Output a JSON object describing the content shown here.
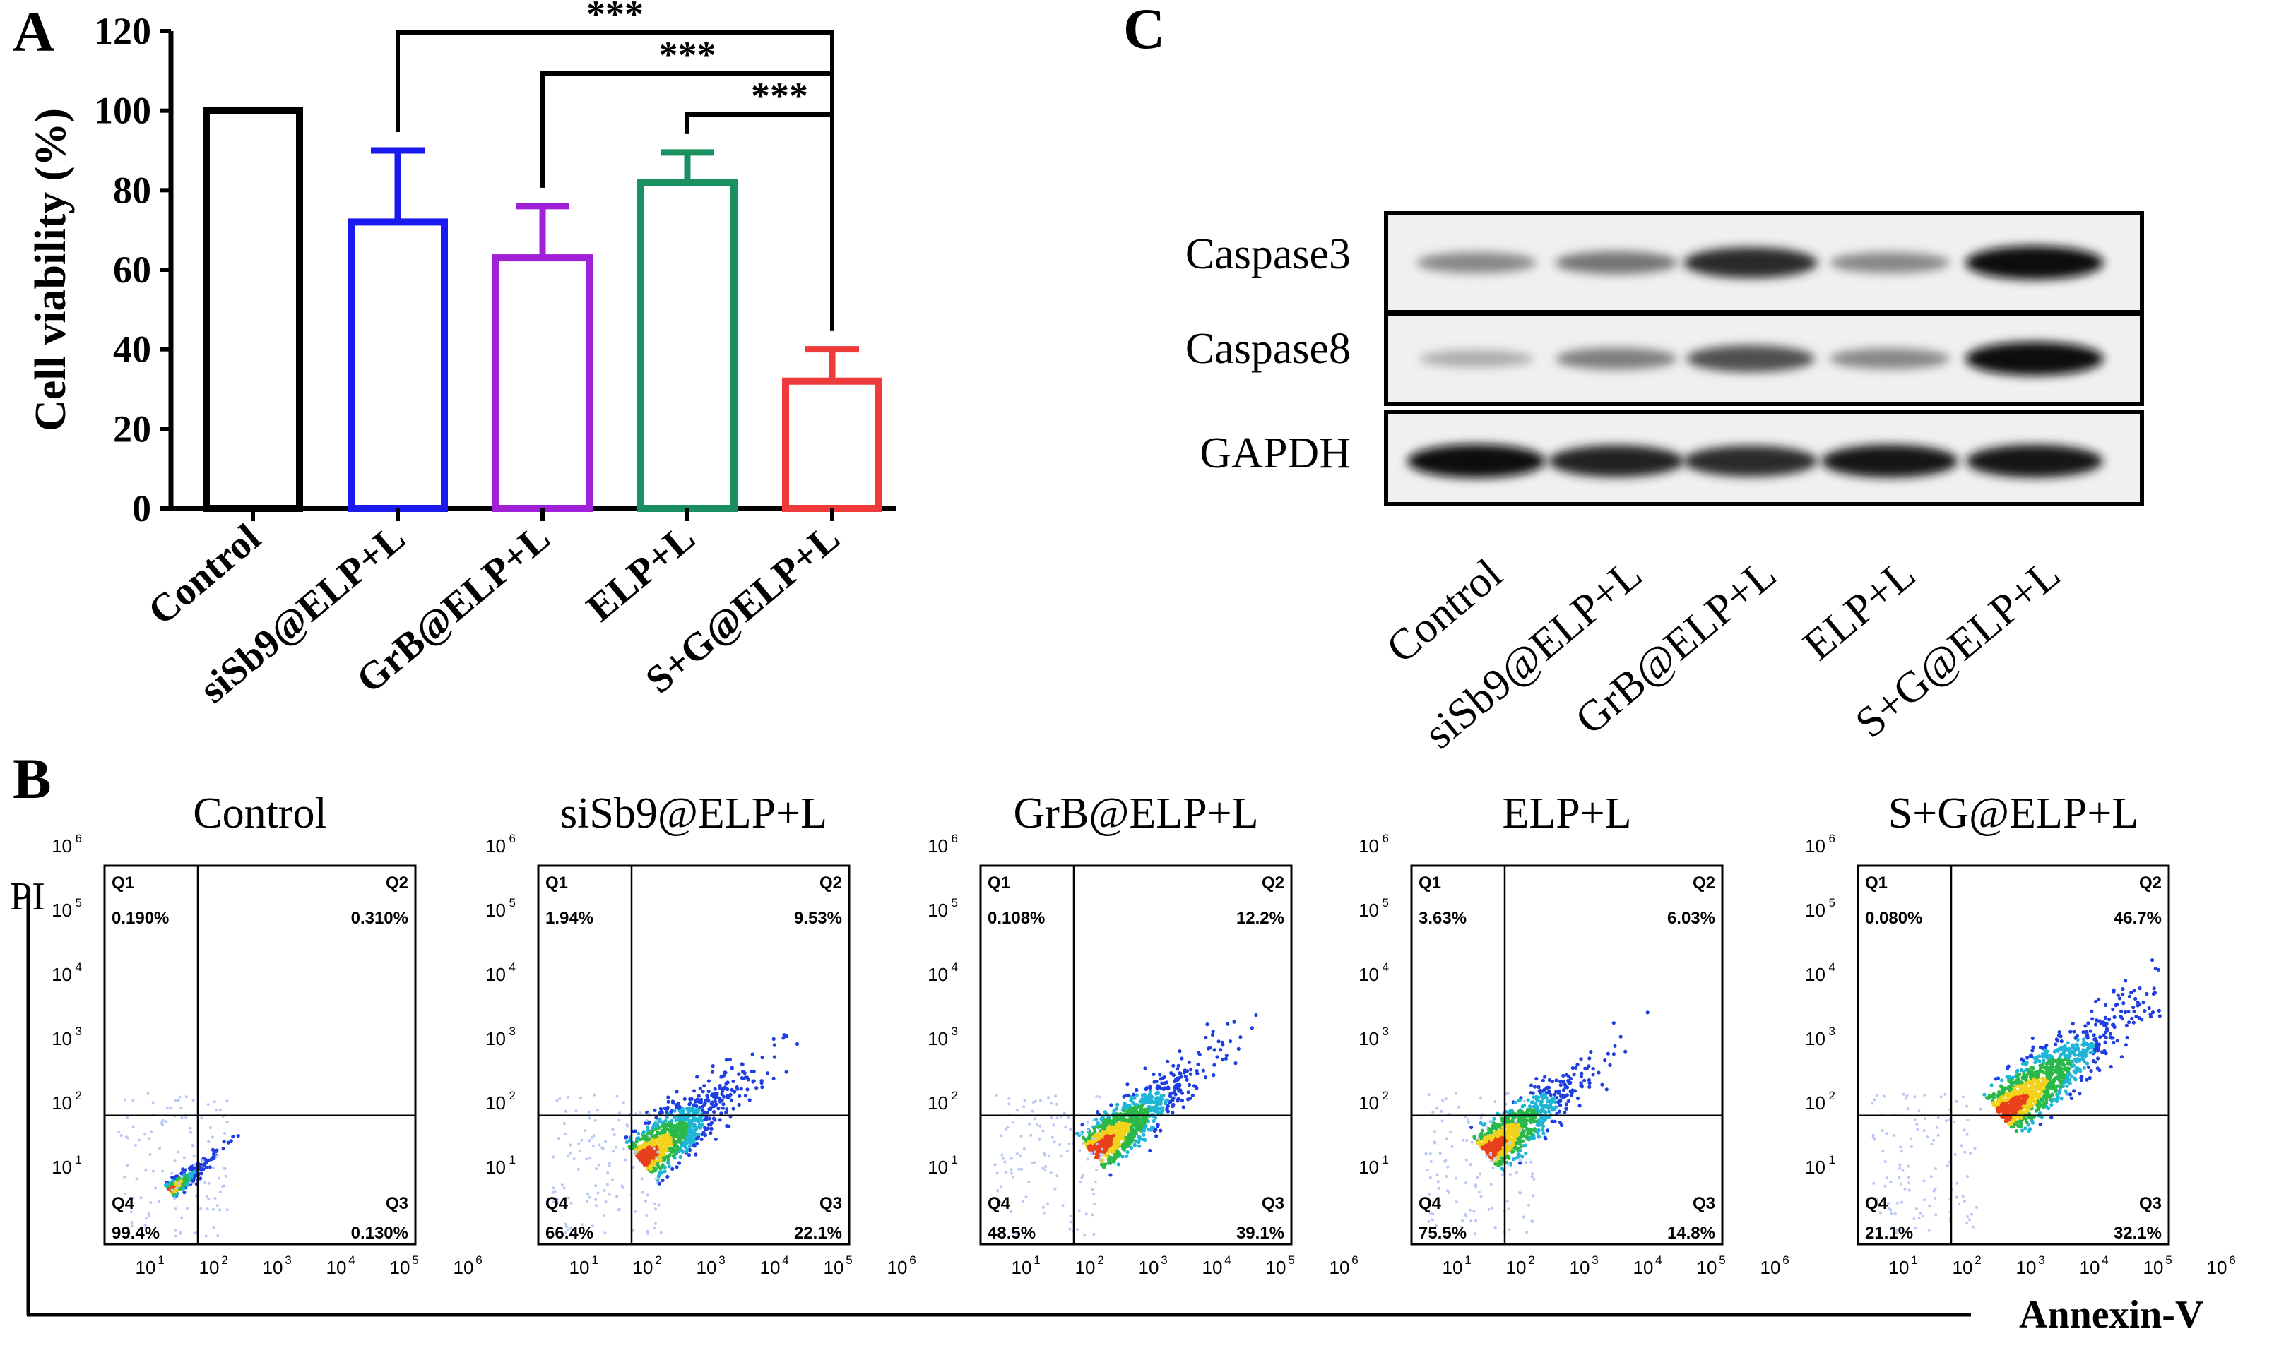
{
  "panels": {
    "A": "A",
    "B": "B",
    "C": "C"
  },
  "chart_data": [
    {
      "type": "bar",
      "panel": "A",
      "ylabel": "Cell viability (%)",
      "ylim": [
        0,
        120
      ],
      "yticks": [
        "0",
        "20",
        "40",
        "60",
        "80",
        "100",
        "120"
      ],
      "categories": [
        "Control",
        "siSb9@ELP+L",
        "GrB@ELP+L",
        "ELP+L",
        "S+G@ELP+L"
      ],
      "values": [
        100,
        72,
        63,
        82,
        32
      ],
      "errors": [
        0.5,
        18,
        13,
        7.5,
        8
      ],
      "colors": [
        "#000000",
        "#1a1aee",
        "#a020d8",
        "#1a9060",
        "#ee3a3a"
      ],
      "significance": [
        {
          "from": "siSb9@ELP+L",
          "to": "S+G@ELP+L",
          "label": "***"
        },
        {
          "from": "GrB@ELP+L",
          "to": "S+G@ELP+L",
          "label": "***"
        },
        {
          "from": "ELP+L",
          "to": "S+G@ELP+L",
          "label": "***"
        }
      ]
    },
    {
      "type": "scatter",
      "panel": "B",
      "xlabel": "Annexin-V",
      "ylabel": "PI",
      "axis_ticks": [
        "10",
        "10",
        "10",
        "10",
        "10",
        "10"
      ],
      "axis_exponents": [
        "1",
        "2",
        "3",
        "4",
        "5",
        "6"
      ],
      "quadrant_labels": [
        "Q1",
        "Q2",
        "Q3",
        "Q4"
      ],
      "plots": [
        {
          "title": "Control",
          "Q1": "0.190%",
          "Q2": "0.310%",
          "Q3": "0.130%",
          "Q4": "99.4%"
        },
        {
          "title": "siSb9@ELP+L",
          "Q1": "1.94%",
          "Q2": "9.53%",
          "Q3": "22.1%",
          "Q4": "66.4%"
        },
        {
          "title": "GrB@ELP+L",
          "Q1": "0.108%",
          "Q2": "12.2%",
          "Q3": "39.1%",
          "Q4": "48.5%"
        },
        {
          "title": "ELP+L",
          "Q1": "3.63%",
          "Q2": "6.03%",
          "Q3": "14.8%",
          "Q4": "75.5%"
        },
        {
          "title": "S+G@ELP+L",
          "Q1": "0.080%",
          "Q2": "46.7%",
          "Q3": "32.1%",
          "Q4": "21.1%"
        }
      ]
    },
    {
      "type": "table",
      "panel": "C",
      "rows": [
        "Caspase3",
        "Caspase8",
        "GAPDH"
      ],
      "columns": [
        "Control",
        "siSb9@ELP+L",
        "GrB@ELP+L",
        "ELP+L",
        "S+G@ELP+L"
      ],
      "band_intensity": [
        [
          0.35,
          0.45,
          0.85,
          0.35,
          1.0
        ],
        [
          0.15,
          0.4,
          0.65,
          0.35,
          1.0
        ],
        [
          1.0,
          0.9,
          0.85,
          0.95,
          0.95
        ]
      ]
    }
  ]
}
